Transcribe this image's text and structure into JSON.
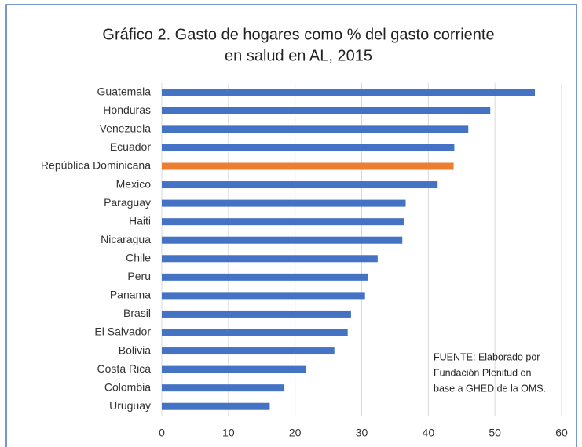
{
  "chart_data": {
    "type": "barh",
    "title": [
      "Gráfico 2. Gasto de hogares como % del gasto corriente",
      "en salud en AL, 2015"
    ],
    "categories": [
      "Guatemala",
      "Honduras",
      "Venezuela",
      "Ecuador",
      "República Dominicana",
      "Mexico",
      "Paraguay",
      "Haiti",
      "Nicaragua",
      "Chile",
      "Peru",
      "Panama",
      "Brasil",
      "El Salvador",
      "Bolivia",
      "Costa Rica",
      "Colombia",
      "Uruguay"
    ],
    "values": [
      56.0,
      49.3,
      46.0,
      43.9,
      43.8,
      41.4,
      36.6,
      36.4,
      36.1,
      32.4,
      30.9,
      30.5,
      28.4,
      27.9,
      25.9,
      21.6,
      18.4,
      16.2
    ],
    "colors": [
      "#4472c4",
      "#4472c4",
      "#4472c4",
      "#4472c4",
      "#ed7d31",
      "#4472c4",
      "#4472c4",
      "#4472c4",
      "#4472c4",
      "#4472c4",
      "#4472c4",
      "#4472c4",
      "#4472c4",
      "#4472c4",
      "#4472c4",
      "#4472c4",
      "#4472c4",
      "#4472c4"
    ],
    "xlim": [
      0,
      60
    ],
    "xticks": [
      0,
      10,
      20,
      30,
      40,
      50,
      60
    ],
    "grid": true,
    "annotation": [
      "FUENTE: Elaborado por",
      "Fundación Plenitud en",
      "base a GHED de la OMS."
    ]
  }
}
